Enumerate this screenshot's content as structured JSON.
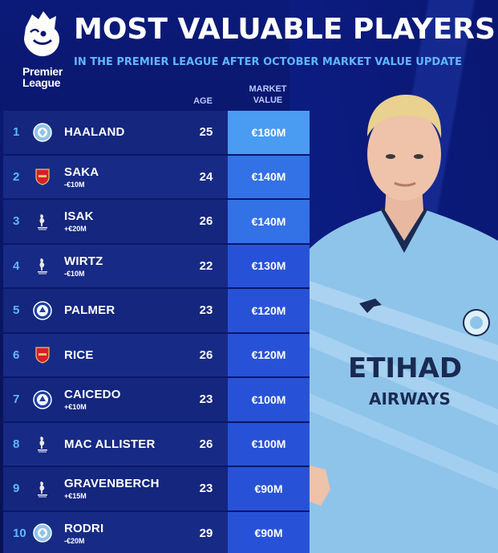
{
  "header": {
    "logo_line1": "Premier",
    "logo_line2": "League",
    "title": "MOST VALUABLE PLAYERS",
    "subtitle": "IN THE PREMIER LEAGUE AFTER OCTOBER MARKET VALUE UPDATE"
  },
  "columns": {
    "age": "AGE",
    "market_line1": "MARKET",
    "market_line2": "VALUE"
  },
  "colors": {
    "background": "#0a1668",
    "accent": "#5fb7ff",
    "value_top": "#4a9bf2",
    "value": "#2752d8"
  },
  "players": [
    {
      "rank": "1",
      "club_icon": "man-city-crest-icon",
      "name": "HAALAND",
      "change": "",
      "age": "25",
      "value": "€180M"
    },
    {
      "rank": "2",
      "club_icon": "arsenal-crest-icon",
      "name": "SAKA",
      "change": "-€10M",
      "age": "24",
      "value": "€140M"
    },
    {
      "rank": "3",
      "club_icon": "liverpool-crest-icon",
      "name": "ISAK",
      "change": "+€20M",
      "age": "26",
      "value": "€140M"
    },
    {
      "rank": "4",
      "club_icon": "liverpool-crest-icon",
      "name": "WIRTZ",
      "change": "-€10M",
      "age": "22",
      "value": "€130M"
    },
    {
      "rank": "5",
      "club_icon": "chelsea-crest-icon",
      "name": "PALMER",
      "change": "",
      "age": "23",
      "value": "€120M"
    },
    {
      "rank": "6",
      "club_icon": "arsenal-crest-icon",
      "name": "RICE",
      "change": "",
      "age": "26",
      "value": "€120M"
    },
    {
      "rank": "7",
      "club_icon": "chelsea-crest-icon",
      "name": "CAICEDO",
      "change": "+€10M",
      "age": "23",
      "value": "€100M"
    },
    {
      "rank": "8",
      "club_icon": "liverpool-crest-icon",
      "name": "MAC ALLISTER",
      "change": "",
      "age": "26",
      "value": "€100M"
    },
    {
      "rank": "9",
      "club_icon": "liverpool-crest-icon",
      "name": "GRAVENBERCH",
      "change": "+€15M",
      "age": "23",
      "value": "€90M"
    },
    {
      "rank": "10",
      "club_icon": "man-city-crest-icon",
      "name": "RODRI",
      "change": "-€20M",
      "age": "29",
      "value": "€90M"
    }
  ],
  "player_image": {
    "shirt_sponsor_line1": "ETIHAD",
    "shirt_sponsor_line2": "AIRWAYS"
  }
}
